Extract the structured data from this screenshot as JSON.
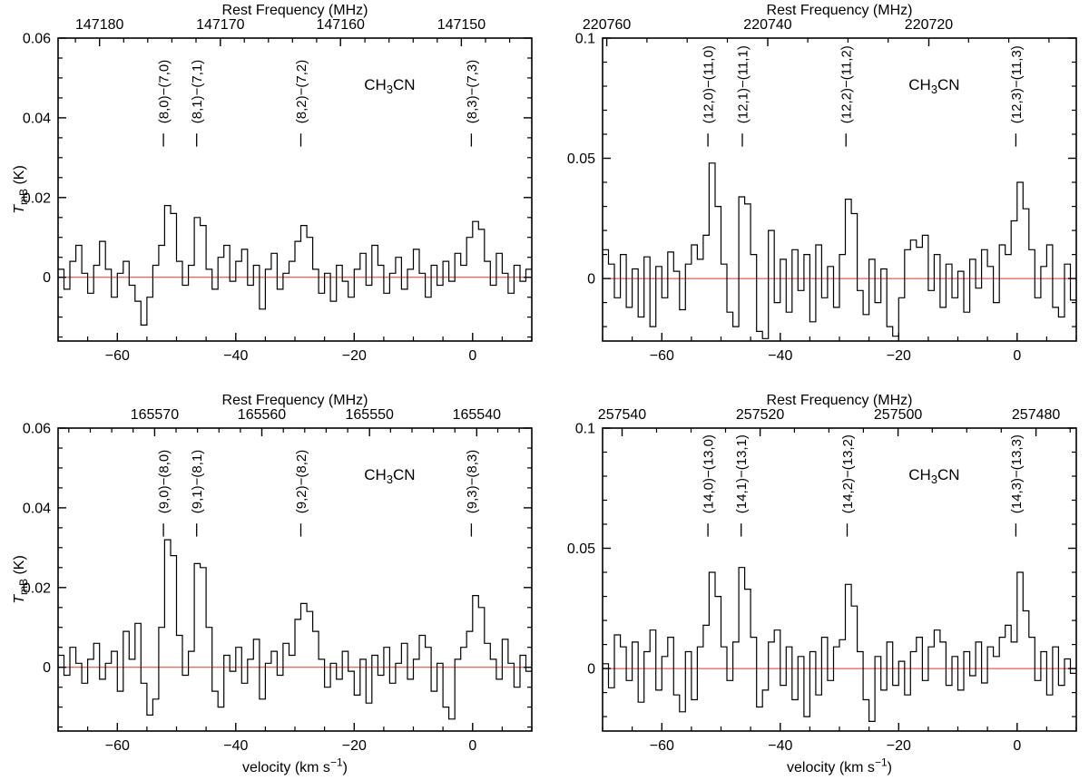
{
  "figure": {
    "background": "#ffffff",
    "top_axis_title": "Rest Frequency (MHz)",
    "x_axis_title_parts": [
      {
        "t": "velocity (km s"
      },
      {
        "t": "−1",
        "sup": true
      },
      {
        "t": ")"
      }
    ],
    "y_axis_title_parts": [
      {
        "t": "T",
        "italic": true
      },
      {
        "t": "mB",
        "sub": true
      },
      {
        "t": " (K)"
      }
    ],
    "molecule_parts": [
      {
        "t": "CH"
      },
      {
        "t": "3",
        "sub": true
      },
      {
        "t": "CN"
      }
    ],
    "axes_style": "box-with-inward-ticks",
    "colors": {
      "trace": "#000000",
      "zero_line": "#e0352b",
      "frame": "#000000"
    }
  },
  "chart_data": [
    {
      "id": "8-7",
      "type": "line",
      "row": 0,
      "col": 0,
      "x": {
        "min": -70,
        "max": 10,
        "major_ticks": [
          -60,
          -40,
          -20,
          0
        ],
        "minor_step": 5
      },
      "y": {
        "min": -0.016,
        "max": 0.06,
        "major_ticks": [
          0,
          0.02,
          0.04,
          0.06
        ],
        "labels": [
          "0",
          "0.02",
          "0.04",
          "0.06"
        ],
        "minor_step": 0.005
      },
      "freq_axis": {
        "ticks": [
          {
            "label": "147180",
            "v": -63.0
          },
          {
            "label": "147170",
            "v": -42.6
          },
          {
            "label": "147160",
            "v": -22.3
          },
          {
            "label": "147150",
            "v": -1.9
          }
        ],
        "minor_dv": 4.074
      },
      "transitions": [
        {
          "label": "(8,0)−(7,0)",
          "v": -52.2
        },
        {
          "label": "(8,1)−(7,1)",
          "v": -46.6
        },
        {
          "label": "(8,2)−(7,2)",
          "v": -29.0
        },
        {
          "label": "(8,3)−(7,3)",
          "v": -0.2
        }
      ],
      "spectrum": {
        "v_start": -70,
        "dv": 1,
        "values": [
          0.002,
          -0.003,
          0.004,
          0.008,
          0.001,
          -0.004,
          0.003,
          0.009,
          0.002,
          -0.005,
          0.001,
          0.004,
          -0.002,
          -0.006,
          -0.012,
          -0.005,
          0.003,
          0.008,
          0.018,
          0.016,
          0.004,
          -0.002,
          0.003,
          0.015,
          0.013,
          0.002,
          -0.003,
          0.005,
          0.008,
          -0.001,
          0.004,
          0.007,
          -0.002,
          0.003,
          -0.008,
          0.002,
          0.006,
          -0.003,
          0.001,
          0.004,
          0.009,
          0.013,
          0.01,
          0.002,
          -0.004,
          0.001,
          -0.006,
          0.003,
          -0.001,
          -0.005,
          0.002,
          0.006,
          -0.002,
          0.008,
          0.003,
          -0.004,
          0.001,
          0.005,
          -0.003,
          0.002,
          0.007,
          0.001,
          -0.005,
          0.003,
          -0.002,
          0.004,
          -0.001,
          0.006,
          0.003,
          0.01,
          0.014,
          0.012,
          0.004,
          -0.002,
          0.006,
          0.001,
          -0.004,
          0.003,
          -0.001,
          0.002
        ]
      }
    },
    {
      "id": "12-11",
      "type": "line",
      "row": 0,
      "col": 1,
      "x": {
        "min": -70,
        "max": 10,
        "major_ticks": [
          -60,
          -40,
          -20,
          0
        ],
        "minor_step": 5
      },
      "y": {
        "min": -0.026,
        "max": 0.1,
        "major_ticks": [
          0,
          0.05,
          0.1
        ],
        "labels": [
          "0",
          "0.05",
          "0.1"
        ],
        "minor_step": 0.01
      },
      "freq_axis": {
        "ticks": [
          {
            "label": "220760",
            "v": -69.3
          },
          {
            "label": "220740",
            "v": -42.1
          },
          {
            "label": "220720",
            "v": -14.9
          }
        ],
        "minor_dv": 6.79
      },
      "transitions": [
        {
          "label": "(12,0)−(11,0)",
          "v": -52.2
        },
        {
          "label": "(12,1)−(11,1)",
          "v": -46.4
        },
        {
          "label": "(12,2)−(11,2)",
          "v": -28.9
        },
        {
          "label": "(12,3)−(11,3)",
          "v": -0.2
        }
      ],
      "spectrum": {
        "v_start": -70,
        "dv": 1,
        "values": [
          0.012,
          0.006,
          -0.008,
          0.01,
          -0.012,
          0.004,
          -0.016,
          0.009,
          -0.02,
          0.005,
          -0.008,
          0.011,
          0.003,
          -0.013,
          0.006,
          0.014,
          0.008,
          0.018,
          0.048,
          0.03,
          0.006,
          -0.014,
          -0.02,
          0.034,
          0.031,
          0.01,
          -0.022,
          -0.025,
          0.02,
          -0.01,
          0.008,
          -0.014,
          0.012,
          -0.005,
          0.01,
          -0.018,
          0.014,
          -0.008,
          0.005,
          -0.012,
          0.01,
          0.033,
          0.027,
          -0.005,
          -0.015,
          0.008,
          -0.01,
          0.004,
          -0.02,
          -0.024,
          -0.008,
          0.012,
          0.016,
          0.013,
          0.018,
          -0.005,
          0.01,
          -0.012,
          0.006,
          -0.008,
          0.003,
          -0.014,
          0.008,
          -0.004,
          0.012,
          0.005,
          -0.01,
          0.014,
          0.01,
          0.024,
          0.04,
          0.029,
          0.012,
          -0.008,
          0.005,
          0.014,
          -0.012,
          -0.016,
          0.006,
          -0.009
        ]
      }
    },
    {
      "id": "9-8",
      "type": "line",
      "row": 1,
      "col": 0,
      "x": {
        "min": -70,
        "max": 10,
        "major_ticks": [
          -60,
          -40,
          -20,
          0
        ],
        "minor_step": 5
      },
      "y": {
        "min": -0.016,
        "max": 0.06,
        "major_ticks": [
          0,
          0.02,
          0.04,
          0.06
        ],
        "labels": [
          "0",
          "0.02",
          "0.04",
          "0.06"
        ],
        "minor_step": 0.005
      },
      "freq_axis": {
        "ticks": [
          {
            "label": "165570",
            "v": -53.7
          },
          {
            "label": "165560",
            "v": -35.6
          },
          {
            "label": "165550",
            "v": -17.4
          },
          {
            "label": "165540",
            "v": 0.7
          }
        ],
        "minor_dv": 3.622
      },
      "transitions": [
        {
          "label": "(9,0)−(8,0)",
          "v": -52.2
        },
        {
          "label": "(9,1)−(8,1)",
          "v": -46.6
        },
        {
          "label": "(9,2)−(8,2)",
          "v": -29.0
        },
        {
          "label": "(9,3)−(8,3)",
          "v": -0.2
        }
      ],
      "spectrum": {
        "v_start": -70,
        "dv": 1,
        "values": [
          0.003,
          -0.002,
          0.005,
          0.001,
          -0.004,
          0.002,
          0.006,
          -0.003,
          0.001,
          0.004,
          -0.006,
          0.009,
          0.002,
          0.011,
          -0.004,
          -0.012,
          -0.008,
          0.01,
          0.032,
          0.028,
          0.008,
          -0.002,
          0.004,
          0.026,
          0.025,
          0.01,
          -0.006,
          -0.01,
          0.003,
          -0.001,
          0.005,
          -0.004,
          0.002,
          0.007,
          -0.008,
          0.001,
          0.004,
          -0.002,
          0.006,
          0.003,
          0.012,
          0.016,
          0.014,
          0.009,
          0.002,
          -0.005,
          0.001,
          -0.003,
          0.004,
          -0.001,
          -0.007,
          0.002,
          -0.009,
          0.003,
          -0.002,
          0.005,
          -0.004,
          0.001,
          0.006,
          -0.003,
          0.002,
          0.008,
          0.005,
          -0.006,
          0.001,
          -0.01,
          -0.013,
          0.002,
          0.005,
          0.009,
          0.018,
          0.015,
          0.006,
          0.002,
          -0.003,
          0.007,
          0.001,
          -0.005,
          0.003,
          -0.001
        ]
      }
    },
    {
      "id": "14-13",
      "type": "line",
      "row": 1,
      "col": 1,
      "x": {
        "min": -70,
        "max": 10,
        "major_ticks": [
          -60,
          -40,
          -20,
          0
        ],
        "minor_step": 5
      },
      "y": {
        "min": -0.026,
        "max": 0.1,
        "major_ticks": [
          0,
          0.05,
          0.1
        ],
        "labels": [
          "0",
          "0.05",
          "0.1"
        ],
        "minor_step": 0.01
      },
      "freq_axis": {
        "ticks": [
          {
            "label": "257540",
            "v": -66.7
          },
          {
            "label": "257520",
            "v": -43.4
          },
          {
            "label": "257500",
            "v": -20.1
          },
          {
            "label": "257480",
            "v": 3.2
          }
        ],
        "minor_dv": 5.82
      },
      "transitions": [
        {
          "label": "(14,0)−(13,0)",
          "v": -52.2
        },
        {
          "label": "(14,1)−(13,1)",
          "v": -46.6
        },
        {
          "label": "(14,2)−(13,2)",
          "v": -28.7
        },
        {
          "label": "(14,3)−(13,3)",
          "v": -0.2
        }
      ],
      "spectrum": {
        "v_start": -70,
        "dv": 1,
        "values": [
          0.002,
          -0.008,
          0.014,
          0.009,
          -0.005,
          0.011,
          -0.014,
          0.007,
          0.016,
          -0.009,
          0.005,
          0.013,
          -0.011,
          -0.018,
          0.007,
          -0.013,
          0.009,
          0.018,
          0.04,
          0.03,
          0.009,
          -0.005,
          0.011,
          0.042,
          0.033,
          0.013,
          -0.016,
          -0.009,
          0.011,
          0.016,
          -0.007,
          0.009,
          -0.013,
          0.005,
          -0.02,
          0.007,
          -0.011,
          0.013,
          -0.005,
          0.009,
          0.012,
          0.035,
          0.026,
          0.007,
          -0.013,
          -0.022,
          0.005,
          -0.009,
          0.011,
          -0.007,
          0.003,
          -0.011,
          0.007,
          0.013,
          -0.005,
          0.009,
          0.016,
          0.011,
          -0.007,
          0.005,
          -0.009,
          0.007,
          -0.003,
          0.011,
          -0.006,
          0.009,
          0.005,
          0.013,
          0.018,
          0.011,
          0.04,
          0.024,
          0.013,
          -0.005,
          0.007,
          -0.011,
          0.009,
          -0.007,
          0.004,
          -0.002
        ]
      }
    }
  ]
}
